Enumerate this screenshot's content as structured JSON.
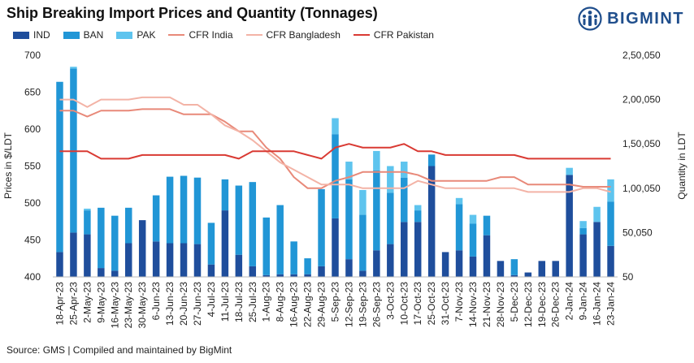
{
  "title": "Ship Breaking Import Prices and Quantity (Tonnages)",
  "logo_text": "BIGMINT",
  "source": "Source: GMS | Compiled and maintained by BigMint",
  "colors": {
    "IND": "#1f4e9c",
    "BAN": "#2196d6",
    "PAK": "#5ec4ee",
    "CFR India": "#e88979",
    "CFR Bangladesh": "#f3b3a6",
    "CFR Pakistan": "#d93a33"
  },
  "chart_data": {
    "type": "bar+line",
    "categories": [
      "18-Apr-23",
      "25-Apr-23",
      "2-May-23",
      "9-May-23",
      "16-May-23",
      "23-May-23",
      "30-May-23",
      "6-Jun-23",
      "13-Jun-23",
      "20-Jun-23",
      "27-Jun-23",
      "4-Jul-23",
      "11-Jul-23",
      "18-Jul-23",
      "25-Jul-23",
      "1-Aug-23",
      "8-Aug-23",
      "16-Aug-23",
      "22-Aug-23",
      "29-Aug-23",
      "5-Sep-23",
      "12-Sep-23",
      "19-Sep-23",
      "26-Sep-23",
      "3-Oct-23",
      "10-Oct-23",
      "17-Oct-23",
      "25-Oct-23",
      "31-Oct-23",
      "7-Nov-23",
      "14-Nov-23",
      "21-Nov-23",
      "28-Nov-23",
      "5-Dec-23",
      "12-Dec-23",
      "19-Dec-23",
      "26-Dec-23",
      "2-Jan-24",
      "9-Jan-24",
      "16-Jan-24",
      "23-Jan-24"
    ],
    "bar_series": [
      {
        "name": "IND",
        "values": [
          28000,
          50000,
          48000,
          10000,
          7000,
          38000,
          64000,
          40000,
          38000,
          38000,
          37000,
          14000,
          75000,
          25000,
          12000,
          2000,
          3000,
          3000,
          3000,
          12000,
          66000,
          20000,
          7000,
          30000,
          37000,
          62000,
          62000,
          125000,
          28000,
          30000,
          23000,
          47000,
          18000,
          2000,
          5000,
          18000,
          18000,
          115000,
          48000,
          62000,
          35000
        ]
      },
      {
        "name": "BAN",
        "values": [
          192000,
          185000,
          27000,
          68000,
          62000,
          40000,
          0,
          52000,
          75000,
          76000,
          75000,
          47000,
          35000,
          78000,
          95000,
          65000,
          78000,
          37000,
          18000,
          87000,
          95000,
          90000,
          63000,
          90000,
          58000,
          50000,
          13000,
          13000,
          0,
          52000,
          37000,
          22000,
          0,
          18000,
          0,
          0,
          0,
          0,
          7000,
          0,
          50000
        ]
      },
      {
        "name": "PAK",
        "values": [
          0,
          2000,
          2000,
          0,
          0,
          0,
          0,
          0,
          0,
          0,
          0,
          0,
          0,
          0,
          0,
          0,
          0,
          0,
          0,
          0,
          18000,
          20000,
          28000,
          22000,
          30000,
          18000,
          6000,
          0,
          0,
          7000,
          10000,
          0,
          0,
          0,
          0,
          0,
          0,
          8000,
          8000,
          17000,
          25000
        ]
      }
    ],
    "line_series": [
      {
        "name": "CFR India",
        "values": [
          625,
          625,
          617,
          625,
          625,
          625,
          627,
          627,
          627,
          620,
          620,
          620,
          610,
          597,
          597,
          575,
          560,
          535,
          520,
          520,
          530,
          535,
          542,
          542,
          542,
          542,
          538,
          530,
          530,
          530,
          530,
          530,
          535,
          535,
          525,
          525,
          525,
          525,
          522,
          522,
          522
        ]
      },
      {
        "name": "CFR Bangladesh",
        "values": [
          640,
          640,
          630,
          640,
          640,
          640,
          643,
          643,
          643,
          633,
          633,
          620,
          605,
          597,
          585,
          570,
          555,
          545,
          535,
          525,
          525,
          525,
          520,
          520,
          520,
          520,
          530,
          525,
          520,
          520,
          520,
          520,
          520,
          520,
          515,
          515,
          515,
          515,
          520,
          520,
          515
        ]
      },
      {
        "name": "CFR Pakistan",
        "values": [
          570,
          570,
          570,
          560,
          560,
          560,
          565,
          565,
          565,
          565,
          565,
          565,
          565,
          560,
          570,
          570,
          570,
          570,
          565,
          560,
          575,
          580,
          575,
          575,
          575,
          580,
          570,
          570,
          565,
          565,
          565,
          565,
          565,
          565,
          560,
          560,
          560,
          560,
          560,
          560,
          560
        ]
      }
    ],
    "y_left": {
      "label": "Prices in $/LDT",
      "ticks": [
        "400",
        "450",
        "500",
        "550",
        "600",
        "650",
        "700"
      ],
      "min": 400,
      "max": 700
    },
    "y_right": {
      "label": "Quantity in LDT",
      "ticks": [
        "50",
        "50,050",
        "1,00,050",
        "1,50,050",
        "2,00,050",
        "2,50,050"
      ],
      "min": 50,
      "max": 250050
    },
    "legend": [
      "IND",
      "BAN",
      "PAK",
      "CFR India",
      "CFR Bangladesh",
      "CFR Pakistan"
    ],
    "legend_position": "top",
    "grid": false
  }
}
